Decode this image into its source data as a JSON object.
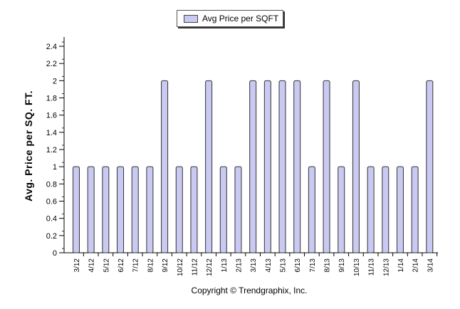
{
  "chart_data": {
    "type": "bar",
    "categories": [
      "3/12",
      "4/12",
      "5/12",
      "6/12",
      "7/12",
      "8/12",
      "9/12",
      "10/12",
      "11/12",
      "12/12",
      "1/13",
      "2/13",
      "3/13",
      "4/13",
      "5/13",
      "6/13",
      "7/13",
      "8/13",
      "9/13",
      "10/13",
      "11/13",
      "12/13",
      "1/14",
      "2/14",
      "3/14"
    ],
    "series": [
      {
        "name": "Avg Price per SQFT",
        "values": [
          1,
          1,
          1,
          1,
          1,
          1,
          2,
          1,
          1,
          2,
          1,
          1,
          2,
          2,
          2,
          2,
          1,
          2,
          1,
          2,
          1,
          1,
          1,
          1,
          2
        ]
      }
    ],
    "title": "",
    "xlabel": "",
    "ylabel": "Avg. Price per SQ. FT.",
    "ylim": [
      0,
      2.4
    ],
    "yticks": [
      "0",
      "0.2",
      "0.4",
      "0.6",
      "0.8",
      "1",
      "1.2",
      "1.4",
      "1.6",
      "1.8",
      "2",
      "2.2",
      "2.4"
    ],
    "legend_position": "top",
    "grid": false,
    "bar_color": "#c9c9f2",
    "bar_border_color": "#333333"
  },
  "footer": {
    "copyright": "Copyright © Trendgraphix, Inc."
  }
}
